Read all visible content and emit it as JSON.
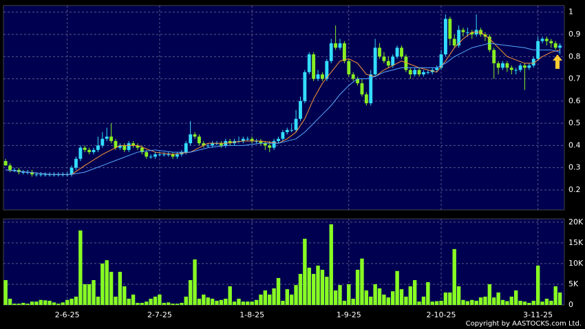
{
  "chart_data": [
    {
      "type": "candlestick",
      "xlim": [
        -0.5,
        127
      ],
      "xticks": [
        {
          "value": 14,
          "label": "2-6-25"
        },
        {
          "value": 35,
          "label": "2-7-25"
        },
        {
          "value": 56,
          "label": "1-8-25"
        },
        {
          "value": 78,
          "label": "1-9-25"
        },
        {
          "value": 99,
          "label": "2-10-25"
        },
        {
          "value": 121,
          "label": "3-11-25"
        }
      ],
      "ylim": [
        0.11,
        1.03
      ],
      "yticks": [
        0.2,
        0.3,
        0.4,
        0.5,
        0.6,
        0.7,
        0.8,
        0.9,
        1
      ],
      "grid": true,
      "up_color": "#33ddff",
      "down_color": "#88ee22",
      "open": [
        0.33,
        0.31,
        0.29,
        0.29,
        0.28,
        0.28,
        0.28,
        0.27,
        0.27,
        0.27,
        0.27,
        0.27,
        0.27,
        0.27,
        0.27,
        0.27,
        0.3,
        0.34,
        0.39,
        0.38,
        0.37,
        0.38,
        0.4,
        0.43,
        0.44,
        0.42,
        0.39,
        0.4,
        0.38,
        0.41,
        0.4,
        0.39,
        0.37,
        0.35,
        0.35,
        0.36,
        0.36,
        0.36,
        0.36,
        0.35,
        0.36,
        0.37,
        0.41,
        0.45,
        0.44,
        0.41,
        0.4,
        0.4,
        0.41,
        0.41,
        0.4,
        0.42,
        0.41,
        0.42,
        0.42,
        0.43,
        0.43,
        0.42,
        0.42,
        0.41,
        0.4,
        0.39,
        0.42,
        0.43,
        0.46,
        0.47,
        0.47,
        0.52,
        0.6,
        0.73,
        0.81,
        0.7,
        0.72,
        0.7,
        0.78,
        0.86,
        0.84,
        0.86,
        0.78,
        0.72,
        0.7,
        0.68,
        0.63,
        0.59,
        0.72,
        0.84,
        0.8,
        0.78,
        0.76,
        0.8,
        0.84,
        0.8,
        0.74,
        0.72,
        0.74,
        0.72,
        0.73,
        0.73,
        0.74,
        0.75,
        0.81,
        0.97,
        0.88,
        0.85,
        0.92,
        0.91,
        0.91,
        0.9,
        0.92,
        0.9,
        0.89,
        0.83,
        0.77,
        0.75,
        0.77,
        0.75,
        0.74,
        0.74,
        0.76,
        0.75,
        0.76,
        0.79,
        0.87,
        0.88,
        0.87,
        0.86,
        0.84
      ],
      "high": [
        0.34,
        0.32,
        0.3,
        0.3,
        0.29,
        0.29,
        0.29,
        0.28,
        0.28,
        0.28,
        0.28,
        0.28,
        0.28,
        0.28,
        0.28,
        0.31,
        0.35,
        0.4,
        0.4,
        0.39,
        0.39,
        0.44,
        0.46,
        0.48,
        0.5,
        0.43,
        0.41,
        0.41,
        0.42,
        0.42,
        0.41,
        0.4,
        0.38,
        0.36,
        0.37,
        0.37,
        0.37,
        0.37,
        0.37,
        0.37,
        0.38,
        0.42,
        0.51,
        0.46,
        0.45,
        0.42,
        0.41,
        0.42,
        0.42,
        0.42,
        0.43,
        0.43,
        0.43,
        0.44,
        0.44,
        0.44,
        0.44,
        0.43,
        0.43,
        0.42,
        0.42,
        0.43,
        0.44,
        0.47,
        0.48,
        0.5,
        0.56,
        0.62,
        0.74,
        0.82,
        0.82,
        0.74,
        0.73,
        0.79,
        0.88,
        0.94,
        0.88,
        0.87,
        0.79,
        0.73,
        0.71,
        0.7,
        0.64,
        0.74,
        0.88,
        0.86,
        0.82,
        0.8,
        0.81,
        0.85,
        0.85,
        0.81,
        0.75,
        0.75,
        0.75,
        0.74,
        0.74,
        0.75,
        0.76,
        0.83,
        0.99,
        0.98,
        0.9,
        0.94,
        0.93,
        0.93,
        0.92,
        0.99,
        0.93,
        0.91,
        0.9,
        0.84,
        0.78,
        0.78,
        0.78,
        0.76,
        0.75,
        0.77,
        0.77,
        0.77,
        0.8,
        0.89,
        0.89,
        0.89,
        0.88,
        0.87,
        0.86
      ],
      "low": [
        0.31,
        0.28,
        0.28,
        0.27,
        0.27,
        0.27,
        0.26,
        0.26,
        0.26,
        0.26,
        0.26,
        0.26,
        0.26,
        0.26,
        0.26,
        0.26,
        0.29,
        0.33,
        0.37,
        0.36,
        0.36,
        0.37,
        0.39,
        0.42,
        0.41,
        0.38,
        0.38,
        0.37,
        0.37,
        0.39,
        0.38,
        0.36,
        0.34,
        0.34,
        0.34,
        0.35,
        0.35,
        0.35,
        0.34,
        0.34,
        0.35,
        0.36,
        0.4,
        0.43,
        0.4,
        0.39,
        0.39,
        0.39,
        0.4,
        0.39,
        0.39,
        0.4,
        0.4,
        0.41,
        0.41,
        0.42,
        0.41,
        0.41,
        0.4,
        0.38,
        0.37,
        0.38,
        0.41,
        0.42,
        0.45,
        0.46,
        0.46,
        0.51,
        0.59,
        0.72,
        0.69,
        0.69,
        0.69,
        0.69,
        0.77,
        0.83,
        0.83,
        0.77,
        0.71,
        0.69,
        0.67,
        0.62,
        0.58,
        0.58,
        0.71,
        0.79,
        0.77,
        0.75,
        0.75,
        0.79,
        0.79,
        0.73,
        0.7,
        0.71,
        0.71,
        0.71,
        0.72,
        0.72,
        0.73,
        0.74,
        0.8,
        0.85,
        0.84,
        0.84,
        0.89,
        0.89,
        0.88,
        0.89,
        0.89,
        0.87,
        0.82,
        0.7,
        0.72,
        0.74,
        0.73,
        0.72,
        0.72,
        0.73,
        0.65,
        0.74,
        0.75,
        0.78,
        0.86,
        0.85,
        0.84,
        0.83,
        0.81
      ],
      "close": [
        0.31,
        0.29,
        0.29,
        0.28,
        0.28,
        0.28,
        0.27,
        0.27,
        0.27,
        0.27,
        0.27,
        0.27,
        0.27,
        0.27,
        0.27,
        0.3,
        0.34,
        0.39,
        0.38,
        0.37,
        0.38,
        0.4,
        0.43,
        0.44,
        0.42,
        0.39,
        0.4,
        0.38,
        0.41,
        0.4,
        0.39,
        0.37,
        0.35,
        0.35,
        0.36,
        0.36,
        0.36,
        0.36,
        0.35,
        0.36,
        0.37,
        0.41,
        0.45,
        0.44,
        0.41,
        0.4,
        0.4,
        0.41,
        0.41,
        0.4,
        0.42,
        0.41,
        0.42,
        0.42,
        0.43,
        0.43,
        0.42,
        0.42,
        0.41,
        0.4,
        0.39,
        0.42,
        0.43,
        0.46,
        0.47,
        0.47,
        0.52,
        0.6,
        0.73,
        0.81,
        0.7,
        0.72,
        0.7,
        0.78,
        0.86,
        0.84,
        0.86,
        0.78,
        0.72,
        0.7,
        0.68,
        0.63,
        0.59,
        0.72,
        0.84,
        0.8,
        0.78,
        0.76,
        0.8,
        0.84,
        0.8,
        0.74,
        0.72,
        0.74,
        0.72,
        0.73,
        0.73,
        0.74,
        0.75,
        0.81,
        0.97,
        0.88,
        0.85,
        0.92,
        0.91,
        0.91,
        0.9,
        0.92,
        0.9,
        0.89,
        0.83,
        0.77,
        0.75,
        0.77,
        0.75,
        0.74,
        0.74,
        0.76,
        0.75,
        0.76,
        0.79,
        0.87,
        0.88,
        0.87,
        0.86,
        0.84,
        0.85
      ],
      "lines": [
        {
          "color": "#ff9933",
          "x": [
            0,
            5,
            10,
            15,
            18,
            22,
            26,
            30,
            34,
            38,
            42,
            46,
            50,
            54,
            58,
            62,
            64,
            66,
            68,
            70,
            72,
            74,
            76,
            78,
            80,
            82,
            84,
            86,
            88,
            90,
            94,
            98,
            100,
            102,
            104,
            106,
            108,
            110,
            114,
            118,
            120,
            122,
            124,
            126
          ],
          "values": [
            0.29,
            0.28,
            0.27,
            0.27,
            0.31,
            0.36,
            0.4,
            0.4,
            0.37,
            0.36,
            0.37,
            0.41,
            0.41,
            0.42,
            0.42,
            0.41,
            0.43,
            0.46,
            0.52,
            0.61,
            0.68,
            0.73,
            0.78,
            0.79,
            0.77,
            0.72,
            0.71,
            0.74,
            0.76,
            0.78,
            0.75,
            0.73,
            0.78,
            0.84,
            0.88,
            0.91,
            0.91,
            0.88,
            0.8,
            0.77,
            0.77,
            0.8,
            0.82,
            0.83
          ]
        },
        {
          "color": "#55aaff",
          "x": [
            0,
            5,
            10,
            15,
            18,
            22,
            26,
            30,
            34,
            38,
            42,
            46,
            50,
            54,
            58,
            62,
            64,
            66,
            68,
            70,
            72,
            74,
            76,
            78,
            80,
            82,
            84,
            86,
            88,
            90,
            94,
            98,
            100,
            102,
            104,
            106,
            108,
            110,
            114,
            118,
            120,
            122,
            124,
            126
          ],
          "values": [
            0.29,
            0.28,
            0.27,
            0.27,
            0.28,
            0.31,
            0.34,
            0.37,
            0.38,
            0.37,
            0.37,
            0.39,
            0.4,
            0.4,
            0.41,
            0.41,
            0.42,
            0.43,
            0.46,
            0.5,
            0.54,
            0.58,
            0.63,
            0.67,
            0.7,
            0.7,
            0.71,
            0.73,
            0.74,
            0.75,
            0.75,
            0.75,
            0.77,
            0.8,
            0.82,
            0.84,
            0.85,
            0.86,
            0.85,
            0.84,
            0.83,
            0.83,
            0.83,
            0.82
          ]
        }
      ]
    },
    {
      "type": "volume",
      "xlim": [
        -0.5,
        127
      ],
      "ylim": [
        0,
        20800
      ],
      "yticks": [
        0,
        {
          "value": 5000,
          "label": "5K"
        },
        {
          "value": 10000,
          "label": "10K"
        },
        {
          "value": 15000,
          "label": "15K"
        },
        {
          "value": 20000,
          "label": "20K"
        }
      ],
      "grid": true,
      "color": "#88ff22",
      "values": [
        6000,
        1500,
        300,
        300,
        500,
        300,
        800,
        800,
        1200,
        1100,
        1000,
        600,
        300,
        600,
        1200,
        1500,
        2000,
        18000,
        5000,
        5000,
        6000,
        2000,
        10000,
        10800,
        8000,
        2000,
        8000,
        4500,
        1500,
        2500,
        500,
        500,
        800,
        1500,
        2000,
        2500,
        500,
        600,
        300,
        300,
        500,
        2000,
        6000,
        11000,
        1500,
        2500,
        1800,
        1500,
        1000,
        1200,
        1500,
        4500,
        800,
        1500,
        800,
        800,
        800,
        1200,
        2500,
        3500,
        2500,
        4000,
        6500,
        1000,
        3800,
        2500,
        4800,
        7500,
        16000,
        9000,
        7500,
        9500,
        8500,
        6800,
        19500,
        3500,
        4800,
        1000,
        5000,
        1500,
        8500,
        11200,
        3500,
        2000,
        5000,
        4000,
        2500,
        1800,
        3300,
        8200,
        3800,
        2000,
        4500,
        6000,
        800,
        2000,
        5500,
        800,
        900,
        1000,
        3000,
        3000,
        13500,
        4500,
        1200,
        900,
        1200,
        1000,
        1800,
        2000,
        5000,
        1800,
        3000,
        1200,
        900,
        2000,
        3500,
        1000,
        800,
        500,
        1000,
        9500,
        800,
        1500,
        1000,
        4500,
        3000
      ]
    }
  ],
  "footer": "Copyright by AASTOCKS.com Ltd."
}
